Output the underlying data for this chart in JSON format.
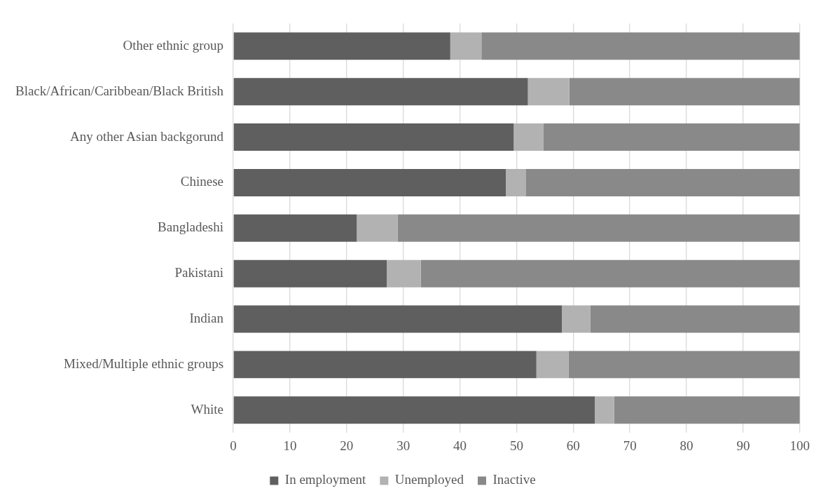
{
  "chart_data": {
    "type": "bar",
    "orientation": "horizontal",
    "stacked": true,
    "categories": [
      "Other ethnic group",
      "Black/African/Caribbean/Black British",
      "Any other Asian backgorund",
      "Chinese",
      "Bangladeshi",
      "Pakistani",
      "Indian",
      "Mixed/Multiple ethnic groups",
      "White"
    ],
    "series": [
      {
        "name": "In employment",
        "color": "#5f5f5f",
        "values": [
          38.3,
          52.0,
          49.5,
          48.1,
          21.8,
          27.1,
          58.0,
          53.5,
          63.8
        ]
      },
      {
        "name": "Unemployed",
        "color": "#b2b2b2",
        "values": [
          5.5,
          7.3,
          5.2,
          3.5,
          7.2,
          6.0,
          5.0,
          5.7,
          3.4
        ]
      },
      {
        "name": "Inactive",
        "color": "#898989",
        "values": [
          56.2,
          40.7,
          45.3,
          48.4,
          71.0,
          66.9,
          37.0,
          40.8,
          32.8
        ]
      }
    ],
    "xlim": [
      0,
      100
    ],
    "xticks": [
      0,
      10,
      20,
      30,
      40,
      50,
      60,
      70,
      80,
      90,
      100
    ],
    "grid": "x",
    "legend": "bottom"
  }
}
